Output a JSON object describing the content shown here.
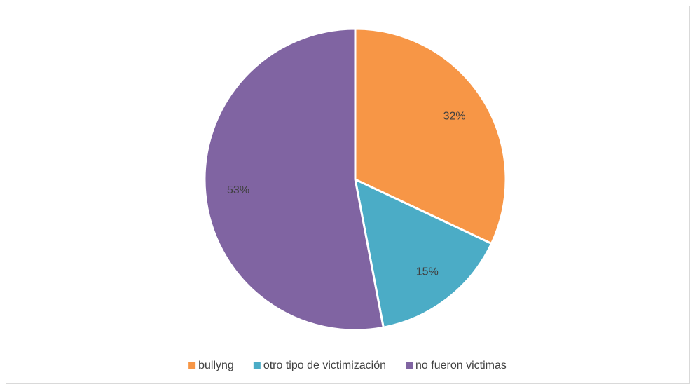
{
  "chart_data": {
    "type": "pie",
    "categories": [
      "bullyng",
      "otro tipo de victimización",
      "no fueron victimas"
    ],
    "values": [
      32,
      15,
      53
    ],
    "value_labels": [
      "32%",
      "15%",
      "53%"
    ],
    "colors": [
      "#F79646",
      "#4BACC6",
      "#8064A2"
    ],
    "legend": "bottom"
  }
}
